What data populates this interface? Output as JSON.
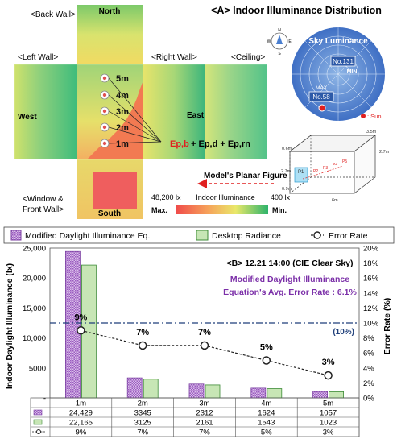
{
  "panel_a": {
    "title": "<A>  Indoor Illuminance Distribution",
    "wall_back": "<Back Wall>",
    "wall_left": "<Left Wall>",
    "wall_right": "<Right Wall>",
    "wall_ceiling": "<Ceiling>",
    "wall_window": "<Window &",
    "wall_window_2": "Front Wall>",
    "dir_north": "North",
    "dir_west": "West",
    "dir_east": "East",
    "dir_south": "South",
    "distances": [
      "5m",
      "4m",
      "3m",
      "2m",
      "1m"
    ],
    "equation": {
      "part1": "Ep,b",
      "part2": " + Ep,d + Ep,rn"
    },
    "model_caption": "Model's Planar Figure",
    "legend_max_value": "48,200 lx",
    "legend_label": "Indoor Illuminance",
    "legend_min_value": "400 lx",
    "legend_max": "Max.",
    "legend_min": "Min.",
    "sky": {
      "title": "Sky Luminance",
      "no131": "No.131",
      "min": "MIN",
      "no58": "No.58",
      "max": "MAX",
      "sun_label": ": Sun"
    },
    "model_dims": {
      "w": "3.5m",
      "h": "2.7m",
      "d": "6m",
      "h2": "2.7m",
      "w2": "0.6m",
      "sill": "0.9m",
      "p1": "P1",
      "p2": "P2",
      "p3": "P3",
      "p4": "P4",
      "p5": "P5"
    }
  },
  "colors": {
    "bar_eq": "#b98fd1",
    "bar_eq_border": "#7b3fa2",
    "bar_radiance": "#c7e6b5",
    "bar_radiance_border": "#3d8b37",
    "error_line": "#222222",
    "ref_line": "#1f3f7a",
    "accent_purple": "#7b2fa8",
    "accent_red": "#e02020",
    "navy": "#1f3f7a"
  },
  "chart_data": {
    "type": "bar",
    "categories": [
      "1m",
      "2m",
      "3m",
      "4m",
      "5m"
    ],
    "series": [
      {
        "name": "Modified Daylight Illuminance Eq.",
        "values": [
          24429,
          3345,
          2312,
          1624,
          1057
        ]
      },
      {
        "name": "Desktop Radiance",
        "values": [
          22165,
          3125,
          2161,
          1543,
          1023
        ]
      }
    ],
    "line_series": {
      "name": "Error Rate",
      "values": [
        9,
        7,
        7,
        5,
        3
      ],
      "labels": [
        "9%",
        "7%",
        "7%",
        "5%",
        "3%"
      ],
      "unit": "%"
    },
    "title": "<B> 12.21 14:00 (CIE Clear Sky)",
    "subtitle_1": "Modified Daylight Illuminance",
    "subtitle_2": "Equation's Avg. Error Rate : 6.1%",
    "ylabel": "Indoor Daylight Illuminance (lx)",
    "ylabel_right": "Error Rate (%)",
    "ylim": [
      0,
      25000
    ],
    "ylim_right": [
      0,
      20
    ],
    "yticks": [
      "-",
      "5000",
      "10,000",
      "15,000",
      "20,000",
      "25,000"
    ],
    "yticks_right": [
      "0%",
      "2%",
      "4%",
      "6%",
      "8%",
      "10%",
      "12%",
      "14%",
      "16%",
      "18%",
      "20%"
    ],
    "reference": {
      "value": 10,
      "label": "(10%)"
    },
    "table": {
      "rows": [
        [
          "24,429",
          "3345",
          "2312",
          "1624",
          "1057"
        ],
        [
          "22,165",
          "3125",
          "2161",
          "1543",
          "1023"
        ],
        [
          "9%",
          "7%",
          "7%",
          "5%",
          "3%"
        ]
      ]
    },
    "legend_position": "top"
  }
}
